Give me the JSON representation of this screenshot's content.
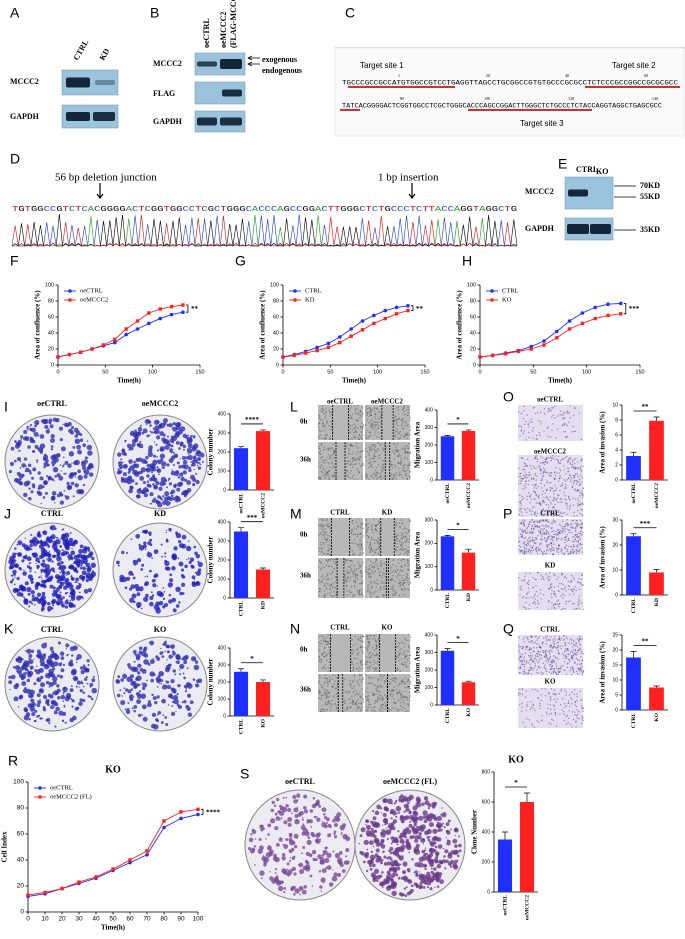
{
  "panel_labels": [
    "A",
    "B",
    "C",
    "D",
    "E",
    "F",
    "G",
    "H",
    "I",
    "J",
    "K",
    "L",
    "M",
    "N",
    "O",
    "P",
    "Q",
    "R",
    "S"
  ],
  "blots": {
    "A": {
      "columns": [
        "CTRL",
        "KD"
      ],
      "rows": [
        "MCCC2",
        "GAPDH"
      ]
    },
    "B": {
      "columns": [
        "oeCTRL",
        "oeMCCC2",
        "(FLAG-MCCC2)"
      ],
      "rows": [
        "MCCC2",
        "FLAG",
        "GAPDH"
      ],
      "arrows": [
        "exogenous",
        "endogenous"
      ]
    },
    "E": {
      "columns": [
        "CTRL",
        "KO"
      ],
      "rows": [
        "MCCC2",
        "GAPDH"
      ],
      "sizes": [
        "70KD",
        "55KD",
        "35KD"
      ]
    }
  },
  "sequence_C": {
    "ruler": [
      "1",
      "20",
      "40",
      "60",
      "80",
      "100",
      "120",
      "140"
    ],
    "lines": [
      "TGCCCGCCGCCATGTGGCCGTCCTGAGGTTAGCCTGCGGCCGTGTGCCCGCGCCTCTCCCGCCGGCCGCGCGCC",
      "TATCACGGGGACTCGGTGGCCTCGCTGGGCACCCAGCCGGACTTGGGCTCTGCCCTCTACCAGGTAGGCTGAGCGCC"
    ],
    "targets": [
      "Target site 1",
      "Target site 2",
      "Target site 3"
    ]
  },
  "sequence_D": {
    "annotations": [
      "56 bp deletion junction",
      "1 bp insertion"
    ],
    "bases": "TGTGGCCGTCTCACGGGGACTCGGTGGCCTCGCTGGGCACCCAGCCGGACTTGGGCTCTGCCCTCTTACCAGGTAGGCTG"
  },
  "image_labels": {
    "I": [
      "oeCTRL",
      "oeMCCC2"
    ],
    "J": [
      "CTRL",
      "KD"
    ],
    "K": [
      "CTRL",
      "KO"
    ],
    "L": {
      "columns": [
        "oeCTRL",
        "oeMCCC2"
      ],
      "rows": [
        "0h",
        "36h"
      ]
    },
    "M": {
      "columns": [
        "CTRL",
        "KD"
      ],
      "rows": [
        "0h",
        "36h"
      ]
    },
    "N": {
      "columns": [
        "CTRL",
        "KO"
      ],
      "rows": [
        "0h",
        "36h"
      ]
    },
    "O": [
      "oeCTRL",
      "oeMCCC2"
    ],
    "P": [
      "CTRL",
      "KD"
    ],
    "Q": [
      "CTRL",
      "KO"
    ],
    "S": [
      "oeCTRL",
      "oeMCCC2 (FL)"
    ]
  },
  "chart_data": [
    {
      "type": "line",
      "x": [
        0,
        12,
        24,
        36,
        48,
        60,
        72,
        84,
        96,
        108,
        120,
        132
      ],
      "xlim": [
        0,
        150
      ],
      "xticks": [
        0,
        50,
        100,
        150
      ],
      "ylim": [
        0,
        100
      ],
      "yticks": [
        0,
        20,
        40,
        60,
        80,
        100
      ],
      "x_label": "Time(h)",
      "y_label": "Area of confluence (%)",
      "annotation": "**",
      "series": [
        {
          "name": "oeCTRL",
          "color": "#1f2fff",
          "values": [
            10,
            13,
            16,
            20,
            24,
            28,
            38,
            45,
            52,
            58,
            63,
            66
          ]
        },
        {
          "name": "oeMCCC2",
          "color": "#ff2020",
          "values": [
            10,
            13,
            16,
            20,
            25,
            32,
            45,
            55,
            65,
            70,
            73,
            75
          ]
        }
      ]
    },
    {
      "type": "line",
      "x": [
        0,
        12,
        24,
        36,
        48,
        60,
        72,
        84,
        96,
        108,
        120,
        132
      ],
      "xlim": [
        0,
        150
      ],
      "xticks": [
        0,
        50,
        100,
        150
      ],
      "ylim": [
        0,
        100
      ],
      "yticks": [
        0,
        20,
        40,
        60,
        80,
        100
      ],
      "x_label": "Time(h)",
      "y_label": "Area of confluence (%)",
      "annotation": "**",
      "series": [
        {
          "name": "CTRL",
          "color": "#1f2fff",
          "values": [
            10,
            13,
            17,
            22,
            27,
            35,
            45,
            55,
            62,
            68,
            72,
            74
          ]
        },
        {
          "name": "KD",
          "color": "#ff2020",
          "values": [
            10,
            12,
            15,
            18,
            22,
            28,
            36,
            44,
            52,
            58,
            64,
            68
          ]
        }
      ]
    },
    {
      "type": "line",
      "x": [
        0,
        12,
        24,
        36,
        48,
        60,
        72,
        84,
        96,
        108,
        120,
        132
      ],
      "xlim": [
        0,
        150
      ],
      "xticks": [
        0,
        50,
        100,
        150
      ],
      "ylim": [
        0,
        100
      ],
      "yticks": [
        0,
        20,
        40,
        60,
        80,
        100
      ],
      "x_label": "Time(h)",
      "y_label": "Area of confluence (%)",
      "annotation": "***",
      "series": [
        {
          "name": "CTRL",
          "color": "#1f2fff",
          "values": [
            10,
            12,
            15,
            18,
            23,
            30,
            42,
            55,
            65,
            72,
            76,
            77
          ]
        },
        {
          "name": "KO",
          "color": "#ff2020",
          "values": [
            10,
            12,
            14,
            17,
            20,
            25,
            34,
            45,
            52,
            58,
            62,
            64
          ]
        }
      ]
    },
    {
      "type": "bar",
      "categories": [
        "oeCTRL",
        "oeMCCC2"
      ],
      "values": [
        220,
        310
      ],
      "errors": [
        8,
        6
      ],
      "colors": [
        "#1f2fff",
        "#ff2020"
      ],
      "ylim": [
        0,
        400
      ],
      "yticks": [
        0,
        100,
        200,
        300,
        400
      ],
      "y_label": "Colony number",
      "annotation": "****"
    },
    {
      "type": "bar",
      "categories": [
        "CTRL",
        "KD"
      ],
      "values": [
        350,
        150
      ],
      "errors": [
        20,
        8
      ],
      "colors": [
        "#1f2fff",
        "#ff2020"
      ],
      "ylim": [
        0,
        400
      ],
      "yticks": [
        0,
        100,
        200,
        300,
        400
      ],
      "y_label": "Colony number",
      "annotation": "***"
    },
    {
      "type": "bar",
      "categories": [
        "CTRL",
        "KO"
      ],
      "values": [
        260,
        200
      ],
      "errors": [
        18,
        12
      ],
      "colors": [
        "#1f2fff",
        "#ff2020"
      ],
      "ylim": [
        0,
        400
      ],
      "yticks": [
        0,
        100,
        200,
        300,
        400
      ],
      "y_label": "Colony number",
      "annotation": "*"
    },
    {
      "type": "bar",
      "categories": [
        "oeCTRL",
        "oeMCCC2"
      ],
      "values": [
        250,
        280
      ],
      "errors": [
        5,
        6
      ],
      "colors": [
        "#1f2fff",
        "#ff2020"
      ],
      "ylim": [
        0,
        400
      ],
      "yticks": [
        0,
        100,
        200,
        300,
        400
      ],
      "y_label": "Migration Area",
      "annotation": "*"
    },
    {
      "type": "bar",
      "categories": [
        "CTRL",
        "KD"
      ],
      "values": [
        230,
        160
      ],
      "errors": [
        4,
        15
      ],
      "colors": [
        "#1f2fff",
        "#ff2020"
      ],
      "ylim": [
        0,
        300
      ],
      "yticks": [
        0,
        100,
        200,
        300
      ],
      "y_label": "Migration Area",
      "annotation": "*"
    },
    {
      "type": "bar",
      "categories": [
        "CTRL",
        "KO"
      ],
      "values": [
        310,
        130
      ],
      "errors": [
        12,
        6
      ],
      "colors": [
        "#1f2fff",
        "#ff2020"
      ],
      "ylim": [
        0,
        400
      ],
      "yticks": [
        0,
        100,
        200,
        300,
        400
      ],
      "y_label": "Migration Area",
      "annotation": "*"
    },
    {
      "type": "bar",
      "categories": [
        "oeCTRL",
        "oeMCCC2"
      ],
      "values": [
        3.2,
        7.9
      ],
      "errors": [
        0.5,
        0.5
      ],
      "colors": [
        "#1f2fff",
        "#ff2020"
      ],
      "ylim": [
        0,
        10
      ],
      "yticks": [
        0,
        2,
        4,
        6,
        8,
        10
      ],
      "y_label": "Area of invasion (%)",
      "annotation": "**"
    },
    {
      "type": "bar",
      "categories": [
        "CTRL",
        "KD"
      ],
      "values": [
        23.5,
        9
      ],
      "errors": [
        1,
        1.2
      ],
      "colors": [
        "#1f2fff",
        "#ff2020"
      ],
      "ylim": [
        0,
        30
      ],
      "yticks": [
        0,
        10,
        20,
        30
      ],
      "y_label": "Area of invasion (%)",
      "annotation": "***"
    },
    {
      "type": "bar",
      "categories": [
        "CTRL",
        "KO"
      ],
      "values": [
        17.5,
        7.5
      ],
      "errors": [
        2,
        0.5
      ],
      "colors": [
        "#1f2fff",
        "#ff2020"
      ],
      "ylim": [
        0,
        25
      ],
      "yticks": [
        0,
        5,
        10,
        15,
        20,
        25
      ],
      "y_label": "Area of invasion (%)",
      "annotation": "**"
    },
    {
      "type": "line",
      "title": "KO",
      "x": [
        0,
        10,
        20,
        30,
        40,
        50,
        60,
        70,
        80,
        90,
        100
      ],
      "xlim": [
        0,
        100
      ],
      "xticks": [
        0,
        10,
        20,
        30,
        40,
        50,
        60,
        70,
        80,
        90,
        100
      ],
      "ylim": [
        0,
        100
      ],
      "yticks": [
        0,
        20,
        40,
        60,
        80,
        100
      ],
      "x_label": "Time(h)",
      "y_label": "Cell Index",
      "annotation": "****",
      "series": [
        {
          "name": "oeCTRL",
          "color": "#1f2fff",
          "values": [
            12,
            14,
            18,
            22,
            26,
            32,
            38,
            44,
            65,
            72,
            75
          ]
        },
        {
          "name": "oeMCCC2 (FL)",
          "color": "#ff2020",
          "values": [
            13,
            15,
            18,
            23,
            27,
            33,
            40,
            47,
            70,
            77,
            79
          ]
        }
      ]
    },
    {
      "type": "bar",
      "title": "KO",
      "categories": [
        "oeCTRL",
        "oeMCCC2"
      ],
      "values": [
        350,
        600
      ],
      "errors": [
        50,
        60
      ],
      "colors": [
        "#1f2fff",
        "#ff2020"
      ],
      "ylim": [
        0,
        800
      ],
      "yticks": [
        0,
        200,
        400,
        600,
        800
      ],
      "y_label": "Clone Number",
      "annotation": "*"
    }
  ]
}
